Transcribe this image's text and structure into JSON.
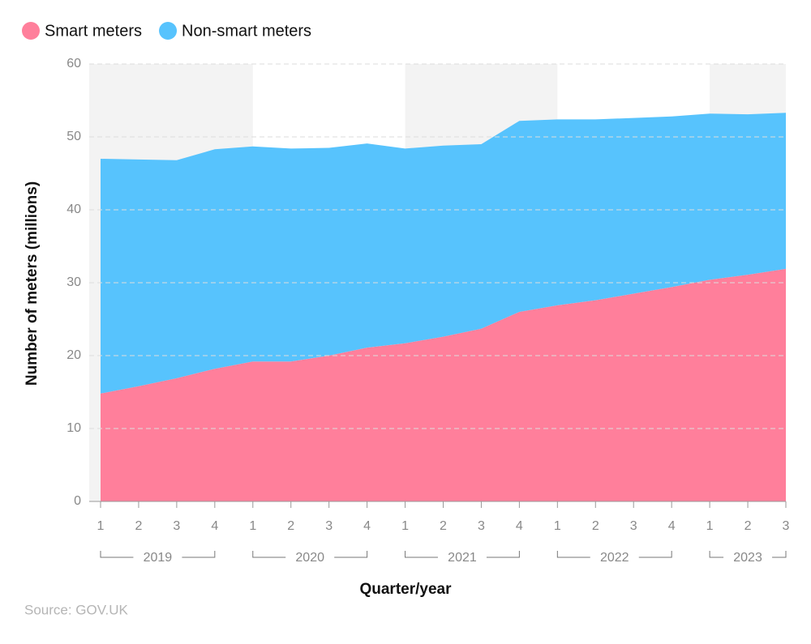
{
  "chart_data": {
    "type": "stacked-area",
    "categories": [
      "1",
      "2",
      "3",
      "4",
      "1",
      "2",
      "3",
      "4",
      "1",
      "2",
      "3",
      "4",
      "1",
      "2",
      "3",
      "4",
      "1",
      "2",
      "3"
    ],
    "groups": [
      {
        "label": "2019",
        "count": 4
      },
      {
        "label": "2020",
        "count": 4
      },
      {
        "label": "2021",
        "count": 4
      },
      {
        "label": "2022",
        "count": 4
      },
      {
        "label": "2023",
        "count": 3
      }
    ],
    "series": [
      {
        "name": "Smart meters",
        "color": "#ff7f9b",
        "values": [
          14.8,
          15.8,
          16.9,
          18.2,
          19.2,
          19.2,
          20.0,
          21.1,
          21.7,
          22.6,
          23.7,
          26.0,
          26.9,
          27.6,
          28.5,
          29.4,
          30.4,
          31.1,
          31.9
        ]
      },
      {
        "name": "Non-smart meters",
        "color": "#57c3fd",
        "values": [
          32.2,
          31.1,
          29.9,
          30.1,
          29.5,
          29.2,
          28.5,
          28.0,
          26.7,
          26.2,
          25.3,
          26.2,
          25.5,
          24.8,
          24.1,
          23.4,
          22.8,
          22.0,
          21.4
        ]
      }
    ],
    "ylim": [
      0,
      60
    ],
    "yticks": [
      0,
      10,
      20,
      30,
      40,
      50,
      60
    ],
    "grid": true,
    "alternate_group_shading": true,
    "ylabel": "Number of meters (millions)",
    "xlabel": "Quarter/year",
    "source": "Source: GOV.UK",
    "legend": "top-left"
  }
}
